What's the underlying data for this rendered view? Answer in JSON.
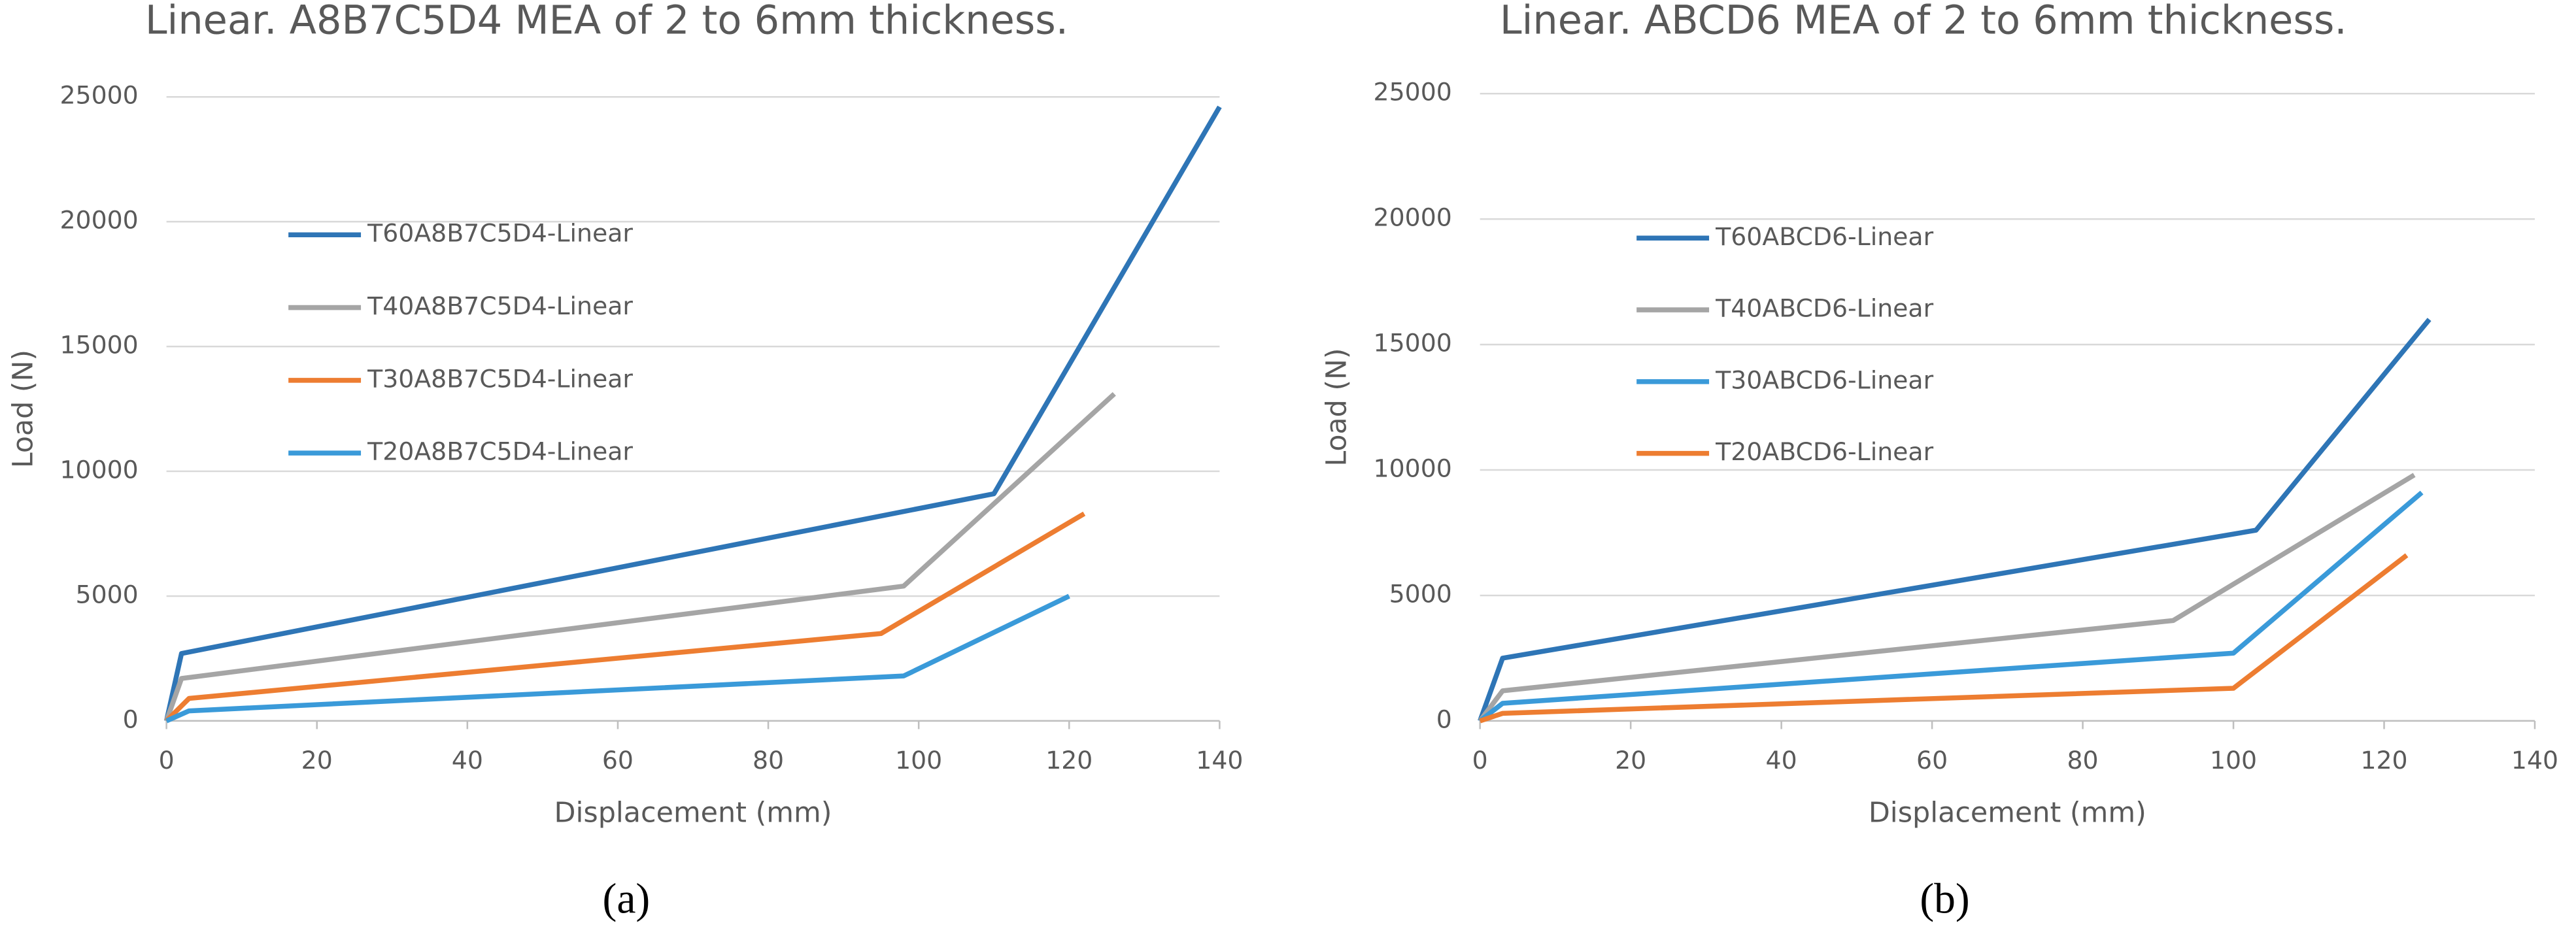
{
  "chart_data": [
    {
      "type": "line",
      "title": "Linear. A8B7C5D4 MEA of 2 to 6mm thickness.",
      "x_label": "Displacement (mm)",
      "y_label": "Load (N)",
      "panel_label": "(a)",
      "xlim": [
        0,
        140
      ],
      "xticks": [
        0,
        20,
        40,
        60,
        80,
        100,
        120,
        140
      ],
      "ylim": [
        0,
        25000
      ],
      "yticks": [
        0,
        5000,
        10000,
        15000,
        20000,
        25000
      ],
      "grid": true,
      "series": [
        {
          "name": "T60A8B7C5D4-Linear",
          "color": "#2e75b6",
          "x": [
            0,
            2,
            110,
            140
          ],
          "values": [
            0,
            2700,
            9100,
            24600
          ]
        },
        {
          "name": "T40A8B7C5D4-Linear",
          "color": "#a5a5a5",
          "x": [
            0,
            2,
            98,
            126
          ],
          "values": [
            0,
            1700,
            5400,
            13100
          ]
        },
        {
          "name": "T30A8B7C5D4-Linear",
          "color": "#ed7d31",
          "x": [
            0,
            3,
            95,
            122
          ],
          "values": [
            0,
            900,
            3500,
            8300
          ]
        },
        {
          "name": "T20A8B7C5D4-Linear",
          "color": "#3a9ad9",
          "x": [
            0,
            3,
            98,
            120
          ],
          "values": [
            0,
            400,
            1800,
            5000
          ]
        }
      ]
    },
    {
      "type": "line",
      "title": "Linear. ABCD6 MEA of 2 to 6mm thickness.",
      "x_label": "Displacement (mm)",
      "y_label": "Load (N)",
      "panel_label": "(b)",
      "xlim": [
        0,
        140
      ],
      "xticks": [
        0,
        20,
        40,
        60,
        80,
        100,
        120,
        140
      ],
      "ylim": [
        0,
        25000
      ],
      "yticks": [
        0,
        5000,
        10000,
        15000,
        20000,
        25000
      ],
      "grid": true,
      "series": [
        {
          "name": "T60ABCD6-Linear",
          "color": "#2e75b6",
          "x": [
            0,
            3,
            103,
            126
          ],
          "values": [
            0,
            2500,
            7600,
            16000
          ]
        },
        {
          "name": "T40ABCD6-Linear",
          "color": "#a5a5a5",
          "x": [
            0,
            3,
            92,
            124
          ],
          "values": [
            0,
            1200,
            4000,
            9800
          ]
        },
        {
          "name": "T30ABCD6-Linear",
          "color": "#3a9ad9",
          "x": [
            0,
            3,
            100,
            125
          ],
          "values": [
            0,
            700,
            2700,
            9100
          ]
        },
        {
          "name": "T20ABCD6-Linear",
          "color": "#ed7d31",
          "x": [
            0,
            3,
            100,
            123
          ],
          "values": [
            0,
            300,
            1300,
            6600
          ]
        }
      ]
    }
  ]
}
